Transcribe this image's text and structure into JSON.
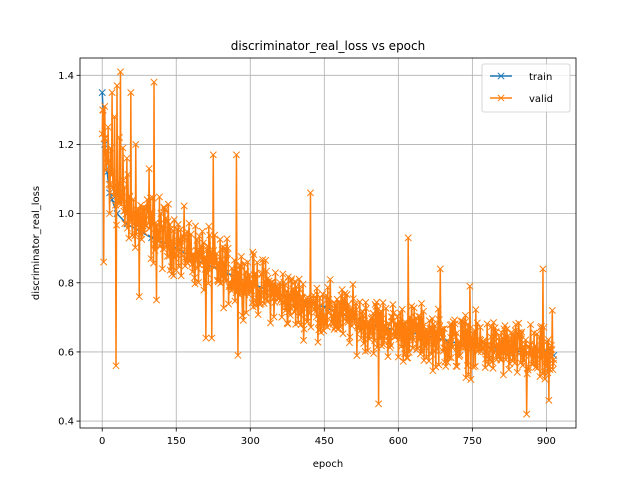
{
  "chart_data": {
    "type": "line",
    "title": "discriminator_real_loss vs epoch",
    "xlabel": "epoch",
    "ylabel": "discriminator_real_loss",
    "xlim": [
      -45,
      960
    ],
    "ylim": [
      0.38,
      1.45
    ],
    "xticks": [
      0,
      150,
      300,
      450,
      600,
      750,
      900
    ],
    "yticks": [
      0.4,
      0.6,
      0.8,
      1.0,
      1.2,
      1.4
    ],
    "grid": true,
    "legend_position": "top-right",
    "marker": "x",
    "series": [
      {
        "name": "train",
        "color": "#1f77b4",
        "x": [
          0,
          5,
          10,
          15,
          20,
          30,
          50,
          100,
          150,
          200,
          250,
          300,
          350,
          400,
          450,
          500,
          550,
          600,
          650,
          700,
          750,
          800,
          850,
          900,
          915
        ],
        "y": [
          1.35,
          1.2,
          1.12,
          1.06,
          1.04,
          1.0,
          0.97,
          0.93,
          0.9,
          0.86,
          0.83,
          0.8,
          0.77,
          0.75,
          0.73,
          0.7,
          0.68,
          0.66,
          0.65,
          0.63,
          0.62,
          0.61,
          0.6,
          0.6,
          0.59
        ]
      },
      {
        "name": "valid",
        "color": "#ff7f0e",
        "anchor_x": [
          0,
          5,
          10,
          15,
          20,
          30,
          40,
          60,
          80,
          100,
          120,
          150,
          200,
          250,
          300,
          350,
          400,
          450,
          500,
          550,
          600,
          650,
          700,
          750,
          800,
          850,
          900,
          915
        ],
        "anchor_y": [
          1.22,
          1.18,
          1.14,
          1.12,
          1.1,
          1.06,
          1.02,
          0.99,
          0.98,
          0.96,
          0.94,
          0.92,
          0.87,
          0.83,
          0.8,
          0.77,
          0.74,
          0.72,
          0.7,
          0.68,
          0.66,
          0.65,
          0.63,
          0.62,
          0.61,
          0.6,
          0.58,
          0.57
        ],
        "noise_amplitude": [
          0.14,
          0.14,
          0.14,
          0.14,
          0.14,
          0.13,
          0.13,
          0.12,
          0.12,
          0.12,
          0.12,
          0.11,
          0.11,
          0.11,
          0.1,
          0.1,
          0.1,
          0.1,
          0.1,
          0.1,
          0.1,
          0.1,
          0.1,
          0.1,
          0.1,
          0.1,
          0.1,
          0.1
        ],
        "highlight_points": [
          [
            37,
            1.41
          ],
          [
            30,
            1.37
          ],
          [
            105,
            1.38
          ],
          [
            20,
            1.35
          ],
          [
            5,
            1.31
          ],
          [
            1,
            1.3
          ],
          [
            58,
            1.35
          ],
          [
            12,
            1.25
          ],
          [
            25,
            1.28
          ],
          [
            35,
            1.22
          ],
          [
            75,
            1.21
          ],
          [
            68,
            1.2
          ],
          [
            225,
            1.17
          ],
          [
            272,
            1.17
          ],
          [
            422,
            1.06
          ],
          [
            42,
            1.19
          ],
          [
            50,
            1.16
          ],
          [
            95,
            1.13
          ],
          [
            110,
            1.12
          ],
          [
            15,
            1.0
          ],
          [
            28,
            0.56
          ],
          [
            3,
            0.86
          ],
          [
            75,
            0.76
          ],
          [
            110,
            0.75
          ],
          [
            160,
            0.82
          ],
          [
            210,
            0.64
          ],
          [
            222,
            0.64
          ],
          [
            275,
            0.59
          ],
          [
            560,
            0.45
          ],
          [
            860,
            0.42
          ],
          [
            905,
            0.46
          ],
          [
            620,
            0.93
          ],
          [
            685,
            0.84
          ],
          [
            745,
            0.79
          ],
          [
            893,
            0.84
          ],
          [
            912,
            0.72
          ]
        ],
        "point_count": 916,
        "x_start": 0,
        "x_step": 1
      }
    ]
  }
}
